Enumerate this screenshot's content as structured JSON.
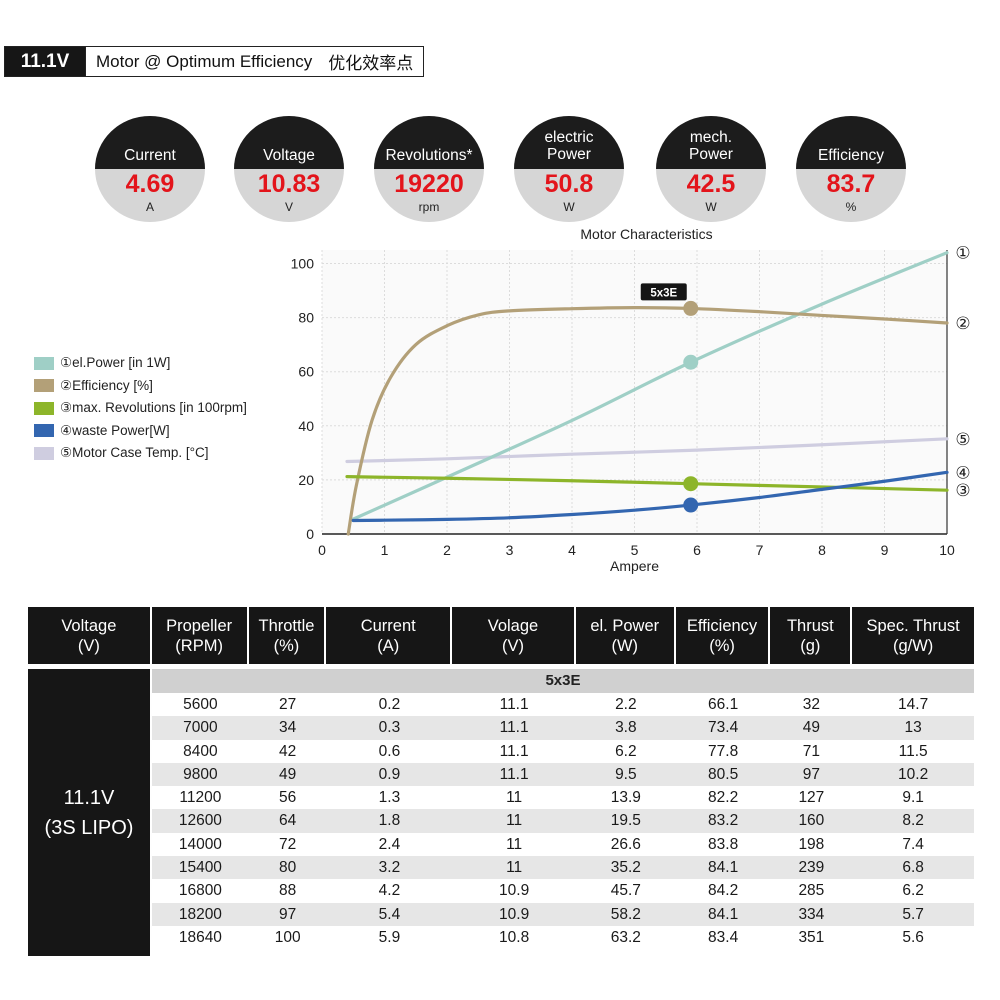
{
  "header": {
    "voltage": "11.1V",
    "title": "Motor @ Optimum Efficiency",
    "title_cn": "优化效率点"
  },
  "stats": [
    {
      "label_lines": [
        "Current"
      ],
      "value": "4.69",
      "unit": "A"
    },
    {
      "label_lines": [
        "Voltage"
      ],
      "value": "10.83",
      "unit": "V"
    },
    {
      "label_lines": [
        "Revolutions*"
      ],
      "value": "19220",
      "unit": "rpm"
    },
    {
      "label_lines": [
        "electric",
        "Power"
      ],
      "value": "50.8",
      "unit": "W"
    },
    {
      "label_lines": [
        "mech.",
        "Power"
      ],
      "value": "42.5",
      "unit": "W"
    },
    {
      "label_lines": [
        "Efficiency"
      ],
      "value": "83.7",
      "unit": "%"
    }
  ],
  "chart_data": {
    "type": "line",
    "title": "Motor Characteristics",
    "xlabel": "Ampere",
    "ylabel": "",
    "xlim": [
      0,
      10
    ],
    "ylim": [
      0,
      105
    ],
    "x_ticks": [
      0,
      1,
      2,
      3,
      4,
      5,
      6,
      7,
      8,
      9,
      10
    ],
    "y_ticks": [
      0,
      20,
      40,
      60,
      80,
      100
    ],
    "grid": true,
    "legend_position": "left",
    "marker_label": "5x3E",
    "marker_x": 5.9,
    "series": [
      {
        "name": "①el.Power [in 1W]",
        "tag": "①",
        "color": "#9fcfc6",
        "points": [
          [
            0.5,
            5.5
          ],
          [
            2,
            21
          ],
          [
            4,
            42
          ],
          [
            5.9,
            63.5
          ],
          [
            8,
            85
          ],
          [
            10,
            104
          ]
        ],
        "marker": [
          5.9,
          63.5
        ]
      },
      {
        "name": "②Efficiency [%]",
        "tag": "②",
        "color": "#b3a078",
        "points": [
          [
            0.42,
            0
          ],
          [
            0.55,
            18
          ],
          [
            0.8,
            42
          ],
          [
            1.1,
            58
          ],
          [
            1.5,
            70
          ],
          [
            2,
            77
          ],
          [
            2.5,
            81
          ],
          [
            3,
            82.5
          ],
          [
            4,
            83.3
          ],
          [
            5,
            83.7
          ],
          [
            5.9,
            83.4
          ],
          [
            7,
            82.2
          ],
          [
            8,
            80.8
          ],
          [
            9,
            79.5
          ],
          [
            10,
            78
          ]
        ],
        "marker": [
          5.9,
          83.4
        ]
      },
      {
        "name": "③max. Revolutions [in 100rpm]",
        "tag": "③",
        "color": "#8db52a",
        "points": [
          [
            0.4,
            21.2
          ],
          [
            2,
            20.6
          ],
          [
            4,
            19.7
          ],
          [
            5.9,
            18.6
          ],
          [
            8,
            17.4
          ],
          [
            10,
            16.2
          ]
        ],
        "marker": [
          5.9,
          18.6
        ]
      },
      {
        "name": "④waste Power[W]",
        "tag": "④",
        "color": "#3366b0",
        "points": [
          [
            0.5,
            5
          ],
          [
            1,
            5.1
          ],
          [
            2,
            5.4
          ],
          [
            3,
            6
          ],
          [
            4,
            7.2
          ],
          [
            5,
            8.8
          ],
          [
            5.9,
            10.7
          ],
          [
            7,
            13.5
          ],
          [
            8,
            16.5
          ],
          [
            9,
            19.5
          ],
          [
            10,
            22.8
          ]
        ],
        "marker": [
          5.9,
          10.7
        ]
      },
      {
        "name": "⑤Motor Case Temp. [°C]",
        "tag": "⑤",
        "color": "#cfcde0",
        "points": [
          [
            0.4,
            26.8
          ],
          [
            2,
            27.8
          ],
          [
            4,
            29.5
          ],
          [
            6,
            31
          ],
          [
            8,
            33
          ],
          [
            10,
            35.2
          ]
        ]
      }
    ]
  },
  "table": {
    "headers": [
      [
        "Voltage",
        "(V)"
      ],
      [
        "Propeller",
        "(RPM)"
      ],
      [
        "Throttle",
        "(%)"
      ],
      [
        "Current",
        "(A)"
      ],
      [
        "Volage",
        "(V)"
      ],
      [
        "el. Power",
        "(W)"
      ],
      [
        "Efficiency",
        "(%)"
      ],
      [
        "Thrust",
        "(g)"
      ],
      [
        "Spec. Thrust",
        "(g/W)"
      ]
    ],
    "side_label": [
      "11.1V",
      "(3S LIPO)"
    ],
    "band_label": "5x3E",
    "rows": [
      [
        "5600",
        "27",
        "0.2",
        "11.1",
        "2.2",
        "66.1",
        "32",
        "14.7"
      ],
      [
        "7000",
        "34",
        "0.3",
        "11.1",
        "3.8",
        "73.4",
        "49",
        "13"
      ],
      [
        "8400",
        "42",
        "0.6",
        "11.1",
        "6.2",
        "77.8",
        "71",
        "11.5"
      ],
      [
        "9800",
        "49",
        "0.9",
        "11.1",
        "9.5",
        "80.5",
        "97",
        "10.2"
      ],
      [
        "11200",
        "56",
        "1.3",
        "11",
        "13.9",
        "82.2",
        "127",
        "9.1"
      ],
      [
        "12600",
        "64",
        "1.8",
        "11",
        "19.5",
        "83.2",
        "160",
        "8.2"
      ],
      [
        "14000",
        "72",
        "2.4",
        "11",
        "26.6",
        "83.8",
        "198",
        "7.4"
      ],
      [
        "15400",
        "80",
        "3.2",
        "11",
        "35.2",
        "84.1",
        "239",
        "6.8"
      ],
      [
        "16800",
        "88",
        "4.2",
        "10.9",
        "45.7",
        "84.2",
        "285",
        "6.2"
      ],
      [
        "18200",
        "97",
        "5.4",
        "10.9",
        "58.2",
        "84.1",
        "334",
        "5.7"
      ],
      [
        "18640",
        "100",
        "5.9",
        "10.8",
        "63.2",
        "83.4",
        "351",
        "5.6"
      ]
    ]
  }
}
